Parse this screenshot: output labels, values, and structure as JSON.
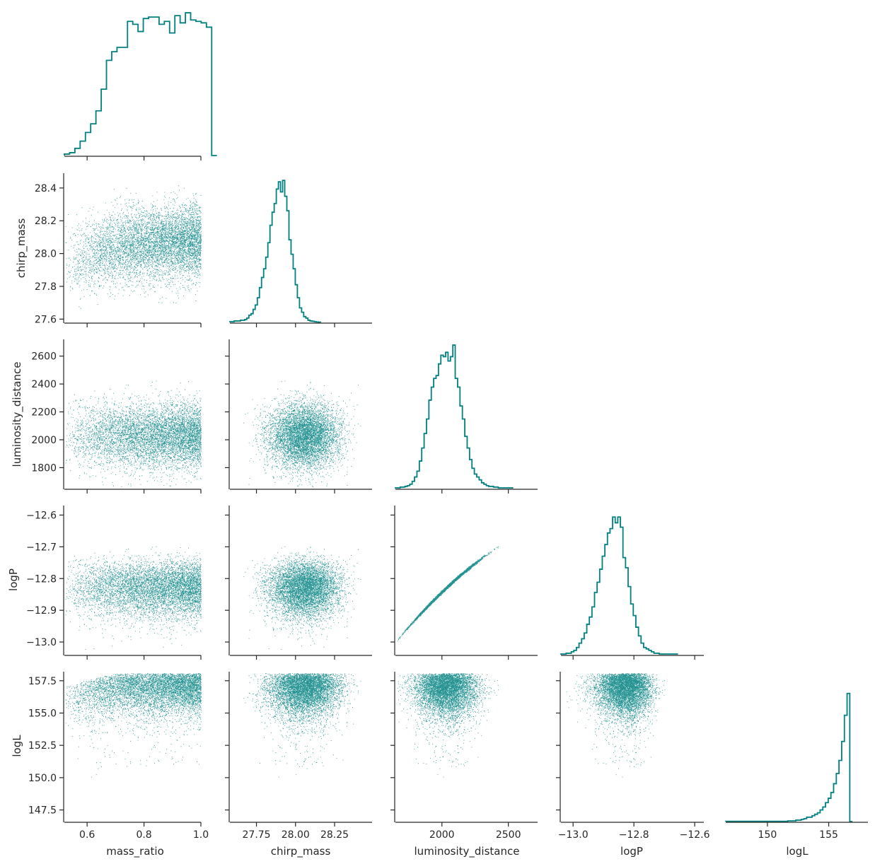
{
  "chart_data": {
    "type": "corner_plot",
    "color": "#008080",
    "axis_color": "#262626",
    "variables": [
      {
        "name": "mass_ratio",
        "label": "mass_ratio",
        "range": [
          0.52,
          1.0
        ],
        "ticks": [
          {
            "value": 0.6,
            "label": "0.6"
          },
          {
            "value": 0.8,
            "label": "0.8"
          },
          {
            "value": 1.0,
            "label": "1.0"
          }
        ]
      },
      {
        "name": "chirp_mass",
        "label": "chirp_mass",
        "range": [
          27.58,
          28.49
        ],
        "ticks": [
          {
            "value": 27.75,
            "label": "27.75"
          },
          {
            "value": 28.0,
            "label": "28.00"
          },
          {
            "value": 28.25,
            "label": "28.25"
          }
        ],
        "y_ticks": [
          {
            "value": 27.6,
            "label": "27.6"
          },
          {
            "value": 27.8,
            "label": "27.8"
          },
          {
            "value": 28.0,
            "label": "28.0"
          },
          {
            "value": 28.2,
            "label": "28.2"
          },
          {
            "value": 28.4,
            "label": "28.4"
          }
        ]
      },
      {
        "name": "luminosity_distance",
        "label": "luminosity_distance",
        "range": [
          1650,
          2720
        ],
        "ticks": [
          {
            "value": 2000,
            "label": "2000"
          },
          {
            "value": 2500,
            "label": "2500"
          }
        ],
        "y_ticks": [
          {
            "value": 1800,
            "label": "1800"
          },
          {
            "value": 2000,
            "label": "2000"
          },
          {
            "value": 2200,
            "label": "2200"
          },
          {
            "value": 2400,
            "label": "2400"
          },
          {
            "value": 2600,
            "label": "2600"
          }
        ]
      },
      {
        "name": "logP",
        "label": "logP",
        "range": [
          -13.04,
          -12.57
        ],
        "ticks": [
          {
            "value": -13.0,
            "label": "−13.0"
          },
          {
            "value": -12.8,
            "label": "−12.8"
          },
          {
            "value": -12.6,
            "label": "−12.6"
          }
        ],
        "y_ticks": [
          {
            "value": -13.0,
            "label": "−13.0"
          },
          {
            "value": -12.9,
            "label": "−12.9"
          },
          {
            "value": -12.8,
            "label": "−12.8"
          },
          {
            "value": -12.7,
            "label": "−12.7"
          },
          {
            "value": -12.6,
            "label": "−12.6"
          }
        ]
      },
      {
        "name": "logL",
        "label": "logL",
        "range": [
          146.6,
          158.2
        ],
        "ticks": [
          {
            "value": 150,
            "label": "150"
          },
          {
            "value": 155,
            "label": "155"
          }
        ],
        "y_ticks": [
          {
            "value": 147.5,
            "label": "147.5"
          },
          {
            "value": 150.0,
            "label": "150.0"
          },
          {
            "value": 152.5,
            "label": "152.5"
          },
          {
            "value": 155.0,
            "label": "155.0"
          },
          {
            "value": 157.5,
            "label": "157.5"
          }
        ]
      }
    ],
    "histograms": [
      {
        "variable": "mass_ratio",
        "bin_edges_start": 0.52,
        "bin_width": 0.0185,
        "counts": [
          0.01,
          0.02,
          0.05,
          0.1,
          0.16,
          0.22,
          0.31,
          0.46,
          0.66,
          0.72,
          0.75,
          0.75,
          0.93,
          0.91,
          0.86,
          0.95,
          0.96,
          0.96,
          0.91,
          0.93,
          0.85,
          0.97,
          0.92,
          0.99,
          0.94,
          0.93,
          0.92,
          0.89,
          0.0
        ]
      },
      {
        "variable": "chirp_mass",
        "bin_edges_start": 27.58,
        "bin_width": 0.0135,
        "counts": [
          0.005,
          0.005,
          0.01,
          0.01,
          0.01,
          0.015,
          0.015,
          0.02,
          0.03,
          0.05,
          0.06,
          0.09,
          0.12,
          0.17,
          0.24,
          0.31,
          0.37,
          0.45,
          0.55,
          0.67,
          0.76,
          0.82,
          0.92,
          0.97,
          0.9,
          0.98,
          0.87,
          0.77,
          0.57,
          0.47,
          0.37,
          0.26,
          0.17,
          0.1,
          0.07,
          0.04,
          0.03,
          0.015,
          0.01,
          0.008,
          0.005,
          0.003,
          0.002
        ]
      },
      {
        "variable": "luminosity_distance",
        "bin_edges_start": 1650,
        "bin_width": 18,
        "counts": [
          0.005,
          0.005,
          0.01,
          0.01,
          0.015,
          0.02,
          0.03,
          0.05,
          0.08,
          0.12,
          0.19,
          0.28,
          0.38,
          0.48,
          0.61,
          0.7,
          0.76,
          0.78,
          0.86,
          0.92,
          0.91,
          0.94,
          0.88,
          0.91,
          0.99,
          0.76,
          0.7,
          0.57,
          0.48,
          0.36,
          0.28,
          0.2,
          0.14,
          0.1,
          0.08,
          0.06,
          0.04,
          0.03,
          0.02,
          0.015,
          0.015,
          0.01,
          0.01,
          0.005,
          0.005,
          0.005,
          0.005,
          0.005,
          0.005
        ]
      },
      {
        "variable": "logP",
        "bin_edges_start": -13.04,
        "bin_width": 0.0085,
        "counts": [
          0.005,
          0.005,
          0.01,
          0.01,
          0.02,
          0.03,
          0.05,
          0.08,
          0.11,
          0.15,
          0.21,
          0.26,
          0.33,
          0.43,
          0.5,
          0.59,
          0.68,
          0.76,
          0.84,
          0.87,
          0.95,
          0.91,
          0.95,
          0.88,
          0.67,
          0.6,
          0.47,
          0.35,
          0.27,
          0.19,
          0.13,
          0.08,
          0.05,
          0.04,
          0.03,
          0.02,
          0.01,
          0.01,
          0.005,
          0.005,
          0.005,
          0.005,
          0.005,
          0.005,
          0.005
        ]
      },
      {
        "variable": "logL",
        "bin_edges_start": 146.6,
        "bin_width": 0.22,
        "counts": [
          0.002,
          0.002,
          0.002,
          0.002,
          0.002,
          0.002,
          0.002,
          0.002,
          0.002,
          0.002,
          0.002,
          0.002,
          0.002,
          0.002,
          0.002,
          0.002,
          0.002,
          0.002,
          0.002,
          0.002,
          0.002,
          0.002,
          0.002,
          0.005,
          0.005,
          0.005,
          0.01,
          0.01,
          0.015,
          0.02,
          0.03,
          0.03,
          0.04,
          0.05,
          0.06,
          0.08,
          0.1,
          0.13,
          0.16,
          0.2,
          0.26,
          0.33,
          0.42,
          0.55,
          0.73,
          0.88,
          0.0
        ]
      }
    ],
    "scatter_points_per_panel": 6500,
    "x_labels": [
      "mass_ratio",
      "chirp_mass",
      "luminosity_distance",
      "logP",
      "logL"
    ],
    "y_labels": [
      "chirp_mass",
      "luminosity_distance",
      "logP",
      "logL"
    ]
  }
}
